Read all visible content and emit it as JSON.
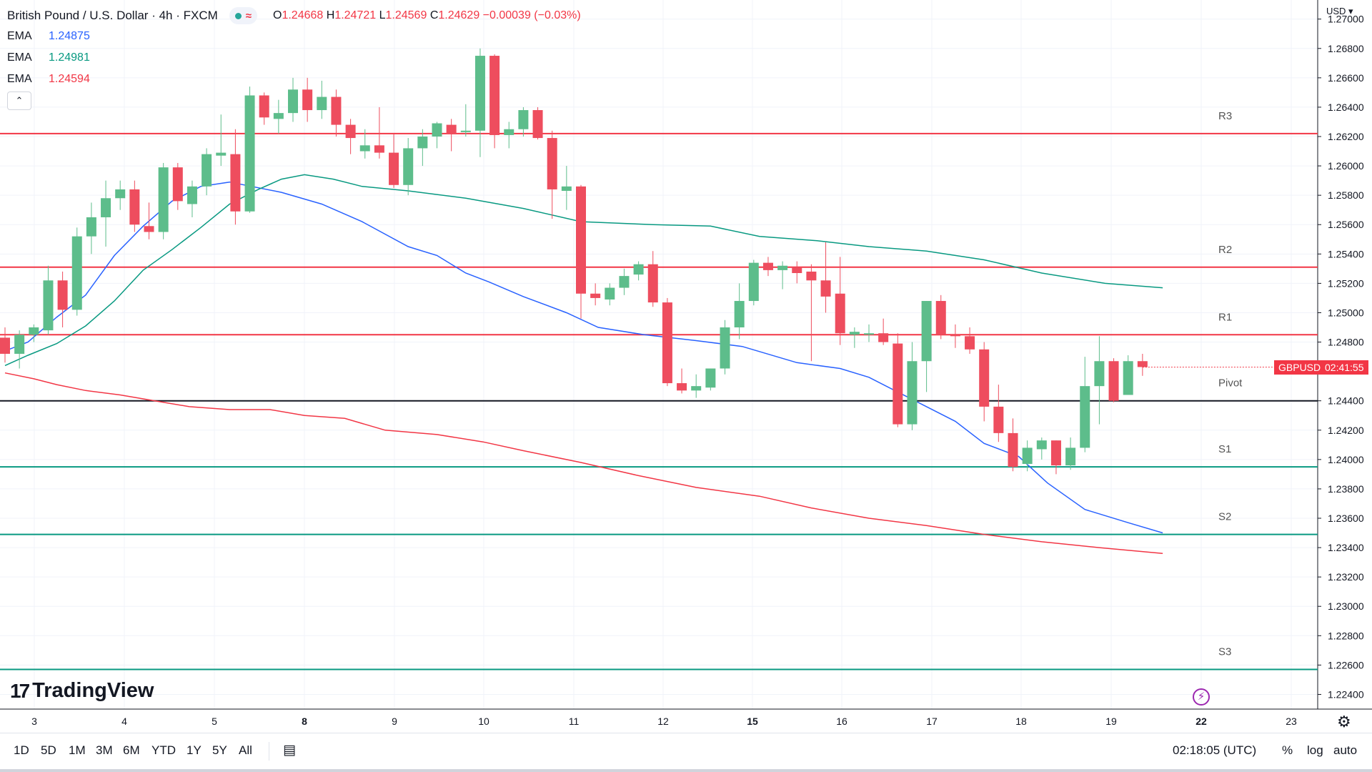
{
  "header": {
    "symbol_title": "British Pound / U.S. Dollar · 4h · FXCM",
    "open_label": "O",
    "open": "1.24668",
    "high_label": "H",
    "high": "1.24721",
    "low_label": "L",
    "low": "1.24569",
    "close_label": "C",
    "close": "1.24629",
    "change": "−0.00039 (−0.03%)",
    "wave_glyph": "≈"
  },
  "emas": [
    {
      "label": "EMA",
      "value": "1.24875",
      "color": "#2962ff"
    },
    {
      "label": "EMA",
      "value": "1.24981",
      "color": "#089981"
    },
    {
      "label": "EMA",
      "value": "1.24594",
      "color": "#f23645"
    }
  ],
  "collapse_glyph": "⌃",
  "logo_mark": "17",
  "logo_text": "TradingView",
  "currency": "USD ▾",
  "price_axis": {
    "ticks": [
      "1.27000",
      "1.26800",
      "1.26600",
      "1.26400",
      "1.26200",
      "1.26000",
      "1.25800",
      "1.25600",
      "1.25400",
      "1.25200",
      "1.25000",
      "1.24800",
      "1.24400",
      "1.24200",
      "1.24000",
      "1.23800",
      "1.23600",
      "1.23400",
      "1.23200",
      "1.23000",
      "1.22800",
      "1.22600",
      "1.22400"
    ]
  },
  "time_axis": {
    "labels": [
      {
        "text": "3",
        "bold": false
      },
      {
        "text": "4",
        "bold": false
      },
      {
        "text": "5",
        "bold": false
      },
      {
        "text": "8",
        "bold": true
      },
      {
        "text": "9",
        "bold": false
      },
      {
        "text": "10",
        "bold": false
      },
      {
        "text": "11",
        "bold": false
      },
      {
        "text": "12",
        "bold": false
      },
      {
        "text": "15",
        "bold": true
      },
      {
        "text": "16",
        "bold": false
      },
      {
        "text": "17",
        "bold": false
      },
      {
        "text": "18",
        "bold": false
      },
      {
        "text": "19",
        "bold": false
      },
      {
        "text": "22",
        "bold": true
      },
      {
        "text": "23",
        "bold": false
      }
    ]
  },
  "price_tag": {
    "symbol": "GBPUSD",
    "countdown": "02:41:55"
  },
  "bottom_bar": {
    "timeframes": [
      "1D",
      "5D",
      "1M",
      "3M",
      "6M",
      "YTD",
      "1Y",
      "5Y",
      "All"
    ],
    "clock": "02:18:05 (UTC)",
    "percent": "%",
    "log": "log",
    "auto": "auto"
  },
  "chart_data": {
    "type": "candlestick",
    "title": "British Pound / U.S. Dollar · 4h · FXCM",
    "ylim": [
      1.223,
      1.2713
    ],
    "candles": [
      {
        "o": 1.2483,
        "h": 1.249,
        "l": 1.2466,
        "c": 1.2472
      },
      {
        "o": 1.2472,
        "h": 1.2488,
        "l": 1.2462,
        "c": 1.2485
      },
      {
        "o": 1.2485,
        "h": 1.2492,
        "l": 1.248,
        "c": 1.249
      },
      {
        "o": 1.2488,
        "h": 1.2532,
        "l": 1.2485,
        "c": 1.2522
      },
      {
        "o": 1.2522,
        "h": 1.2528,
        "l": 1.249,
        "c": 1.2502
      },
      {
        "o": 1.2502,
        "h": 1.2558,
        "l": 1.2498,
        "c": 1.2552
      },
      {
        "o": 1.2552,
        "h": 1.2575,
        "l": 1.254,
        "c": 1.2565
      },
      {
        "o": 1.2565,
        "h": 1.259,
        "l": 1.2545,
        "c": 1.2578
      },
      {
        "o": 1.2578,
        "h": 1.259,
        "l": 1.257,
        "c": 1.2584
      },
      {
        "o": 1.2584,
        "h": 1.259,
        "l": 1.2555,
        "c": 1.256
      },
      {
        "o": 1.2559,
        "h": 1.2575,
        "l": 1.255,
        "c": 1.2555
      },
      {
        "o": 1.2555,
        "h": 1.2602,
        "l": 1.255,
        "c": 1.2599
      },
      {
        "o": 1.2599,
        "h": 1.2602,
        "l": 1.257,
        "c": 1.2576
      },
      {
        "o": 1.2574,
        "h": 1.259,
        "l": 1.2565,
        "c": 1.2586
      },
      {
        "o": 1.2586,
        "h": 1.2612,
        "l": 1.258,
        "c": 1.2608
      },
      {
        "o": 1.2607,
        "h": 1.2635,
        "l": 1.26,
        "c": 1.2609
      },
      {
        "o": 1.2608,
        "h": 1.2625,
        "l": 1.256,
        "c": 1.2569
      },
      {
        "o": 1.2569,
        "h": 1.2654,
        "l": 1.2568,
        "c": 1.2648
      },
      {
        "o": 1.2648,
        "h": 1.265,
        "l": 1.2628,
        "c": 1.2633
      },
      {
        "o": 1.2632,
        "h": 1.2645,
        "l": 1.2622,
        "c": 1.2636
      },
      {
        "o": 1.2636,
        "h": 1.266,
        "l": 1.263,
        "c": 1.2652
      },
      {
        "o": 1.2652,
        "h": 1.266,
        "l": 1.263,
        "c": 1.2638
      },
      {
        "o": 1.2638,
        "h": 1.2658,
        "l": 1.2632,
        "c": 1.2647
      },
      {
        "o": 1.2647,
        "h": 1.2652,
        "l": 1.262,
        "c": 1.2628
      },
      {
        "o": 1.2628,
        "h": 1.2632,
        "l": 1.2608,
        "c": 1.2619
      },
      {
        "o": 1.261,
        "h": 1.2625,
        "l": 1.2605,
        "c": 1.2614
      },
      {
        "o": 1.2614,
        "h": 1.264,
        "l": 1.2605,
        "c": 1.2609
      },
      {
        "o": 1.2609,
        "h": 1.2622,
        "l": 1.2585,
        "c": 1.2587
      },
      {
        "o": 1.2587,
        "h": 1.2619,
        "l": 1.258,
        "c": 1.2612
      },
      {
        "o": 1.2612,
        "h": 1.2625,
        "l": 1.26,
        "c": 1.262
      },
      {
        "o": 1.262,
        "h": 1.263,
        "l": 1.2612,
        "c": 1.2629
      },
      {
        "o": 1.2628,
        "h": 1.2632,
        "l": 1.261,
        "c": 1.2622
      },
      {
        "o": 1.2623,
        "h": 1.2642,
        "l": 1.262,
        "c": 1.2624
      },
      {
        "o": 1.2624,
        "h": 1.268,
        "l": 1.2606,
        "c": 1.2675
      },
      {
        "o": 1.2675,
        "h": 1.2676,
        "l": 1.2612,
        "c": 1.2621
      },
      {
        "o": 1.2621,
        "h": 1.263,
        "l": 1.2612,
        "c": 1.2625
      },
      {
        "o": 1.2625,
        "h": 1.264,
        "l": 1.262,
        "c": 1.2638
      },
      {
        "o": 1.2638,
        "h": 1.264,
        "l": 1.2618,
        "c": 1.2619
      },
      {
        "o": 1.2619,
        "h": 1.2624,
        "l": 1.2564,
        "c": 1.2584
      },
      {
        "o": 1.2583,
        "h": 1.26,
        "l": 1.257,
        "c": 1.2586
      },
      {
        "o": 1.2586,
        "h": 1.2587,
        "l": 1.2496,
        "c": 1.2513
      },
      {
        "o": 1.2513,
        "h": 1.252,
        "l": 1.2505,
        "c": 1.251
      },
      {
        "o": 1.2509,
        "h": 1.252,
        "l": 1.2505,
        "c": 1.2517
      },
      {
        "o": 1.2517,
        "h": 1.253,
        "l": 1.2512,
        "c": 1.2525
      },
      {
        "o": 1.2526,
        "h": 1.2535,
        "l": 1.2522,
        "c": 1.2533
      },
      {
        "o": 1.2533,
        "h": 1.2542,
        "l": 1.2504,
        "c": 1.2507
      },
      {
        "o": 1.2507,
        "h": 1.251,
        "l": 1.245,
        "c": 1.2452
      },
      {
        "o": 1.2452,
        "h": 1.2462,
        "l": 1.2445,
        "c": 1.2447
      },
      {
        "o": 1.2447,
        "h": 1.2458,
        "l": 1.2442,
        "c": 1.245
      },
      {
        "o": 1.2449,
        "h": 1.2462,
        "l": 1.2447,
        "c": 1.2462
      },
      {
        "o": 1.2462,
        "h": 1.2495,
        "l": 1.2458,
        "c": 1.249
      },
      {
        "o": 1.249,
        "h": 1.252,
        "l": 1.2482,
        "c": 1.2508
      },
      {
        "o": 1.2508,
        "h": 1.2536,
        "l": 1.2505,
        "c": 1.2534
      },
      {
        "o": 1.2534,
        "h": 1.2538,
        "l": 1.2525,
        "c": 1.2529
      },
      {
        "o": 1.2529,
        "h": 1.2535,
        "l": 1.2516,
        "c": 1.2532
      },
      {
        "o": 1.2531,
        "h": 1.2535,
        "l": 1.252,
        "c": 1.2527
      },
      {
        "o": 1.2528,
        "h": 1.2533,
        "l": 1.2467,
        "c": 1.2522
      },
      {
        "o": 1.2522,
        "h": 1.2548,
        "l": 1.25,
        "c": 1.2511
      },
      {
        "o": 1.2513,
        "h": 1.2538,
        "l": 1.2478,
        "c": 1.2486
      },
      {
        "o": 1.2485,
        "h": 1.249,
        "l": 1.2476,
        "c": 1.2487
      },
      {
        "o": 1.2486,
        "h": 1.2492,
        "l": 1.248,
        "c": 1.2486
      },
      {
        "o": 1.2486,
        "h": 1.2496,
        "l": 1.2478,
        "c": 1.248
      },
      {
        "o": 1.2479,
        "h": 1.2486,
        "l": 1.2422,
        "c": 1.2424
      },
      {
        "o": 1.2424,
        "h": 1.248,
        "l": 1.242,
        "c": 1.2467
      },
      {
        "o": 1.2467,
        "h": 1.2508,
        "l": 1.2446,
        "c": 1.2508
      },
      {
        "o": 1.2508,
        "h": 1.2512,
        "l": 1.2482,
        "c": 1.2485
      },
      {
        "o": 1.2485,
        "h": 1.2492,
        "l": 1.2476,
        "c": 1.2484
      },
      {
        "o": 1.2484,
        "h": 1.249,
        "l": 1.2472,
        "c": 1.2475
      },
      {
        "o": 1.2475,
        "h": 1.248,
        "l": 1.2426,
        "c": 1.2436
      },
      {
        "o": 1.2436,
        "h": 1.2451,
        "l": 1.2412,
        "c": 1.2418
      },
      {
        "o": 1.2418,
        "h": 1.2428,
        "l": 1.2392,
        "c": 1.2395
      },
      {
        "o": 1.2397,
        "h": 1.2413,
        "l": 1.2392,
        "c": 1.2408
      },
      {
        "o": 1.2407,
        "h": 1.2415,
        "l": 1.24,
        "c": 1.2413
      },
      {
        "o": 1.2413,
        "h": 1.2413,
        "l": 1.239,
        "c": 1.2396
      },
      {
        "o": 1.2396,
        "h": 1.2415,
        "l": 1.2393,
        "c": 1.2408
      },
      {
        "o": 1.2408,
        "h": 1.247,
        "l": 1.2405,
        "c": 1.245
      },
      {
        "o": 1.245,
        "h": 1.2484,
        "l": 1.2424,
        "c": 1.2467
      },
      {
        "o": 1.2467,
        "h": 1.2469,
        "l": 1.2439,
        "c": 1.244
      },
      {
        "o": 1.2444,
        "h": 1.2471,
        "l": 1.2444,
        "c": 1.2467
      },
      {
        "o": 1.2467,
        "h": 1.2472,
        "l": 1.2457,
        "c": 1.2463
      }
    ],
    "ema_series": [
      {
        "name": "EMA 1.24875",
        "color": "#2962ff",
        "values": [
          [
            0,
            1.2474
          ],
          [
            8,
            1.248
          ],
          [
            18,
            1.2497
          ],
          [
            28,
            1.2512
          ],
          [
            38,
            1.2539
          ],
          [
            48,
            1.2559
          ],
          [
            58,
            1.2576
          ],
          [
            68,
            1.2586
          ],
          [
            78,
            1.2589
          ],
          [
            96,
            1.2582
          ],
          [
            110,
            1.2574
          ],
          [
            124,
            1.2562
          ],
          [
            140,
            1.2545
          ],
          [
            150,
            1.2539
          ],
          [
            160,
            1.2527
          ],
          [
            168,
            1.2521
          ],
          [
            180,
            1.2511
          ],
          [
            195,
            1.25
          ],
          [
            206,
            1.249
          ],
          [
            222,
            1.2485
          ],
          [
            240,
            1.2481
          ],
          [
            256,
            1.2477
          ],
          [
            275,
            1.2466
          ],
          [
            290,
            1.2462
          ],
          [
            300,
            1.2456
          ],
          [
            310,
            1.2446
          ],
          [
            320,
            1.2436
          ],
          [
            330,
            1.2426
          ],
          [
            340,
            1.2411
          ],
          [
            352,
            1.2402
          ],
          [
            362,
            1.2384
          ],
          [
            375,
            1.2366
          ],
          [
            390,
            1.2357
          ],
          [
            402,
            1.235
          ]
        ]
      },
      {
        "name": "EMA 1.24981",
        "color": "#089981",
        "values": [
          [
            0,
            1.2464
          ],
          [
            8,
            1.2471
          ],
          [
            18,
            1.2479
          ],
          [
            28,
            1.2491
          ],
          [
            38,
            1.2508
          ],
          [
            48,
            1.2529
          ],
          [
            58,
            1.2543
          ],
          [
            68,
            1.2558
          ],
          [
            78,
            1.2574
          ],
          [
            88,
            1.2584
          ],
          [
            96,
            1.2591
          ],
          [
            104,
            1.2594
          ],
          [
            114,
            1.2591
          ],
          [
            124,
            1.2586
          ],
          [
            140,
            1.2583
          ],
          [
            160,
            1.2578
          ],
          [
            180,
            1.2571
          ],
          [
            200,
            1.2562
          ],
          [
            225,
            1.256
          ],
          [
            245,
            1.2559
          ],
          [
            262,
            1.2552
          ],
          [
            282,
            1.2549
          ],
          [
            300,
            1.2545
          ],
          [
            320,
            1.2542
          ],
          [
            340,
            1.2536
          ],
          [
            360,
            1.2527
          ],
          [
            382,
            1.252
          ],
          [
            402,
            1.2517
          ]
        ]
      },
      {
        "name": "EMA 1.24594",
        "color": "#f23645",
        "values": [
          [
            0,
            1.2459
          ],
          [
            10,
            1.2455
          ],
          [
            18,
            1.2451
          ],
          [
            28,
            1.2447
          ],
          [
            40,
            1.2444
          ],
          [
            52,
            1.244
          ],
          [
            64,
            1.2436
          ],
          [
            78,
            1.2434
          ],
          [
            92,
            1.2434
          ],
          [
            104,
            1.243
          ],
          [
            118,
            1.2428
          ],
          [
            132,
            1.242
          ],
          [
            150,
            1.2417
          ],
          [
            166,
            1.2412
          ],
          [
            180,
            1.2406
          ],
          [
            200,
            1.2398
          ],
          [
            220,
            1.2389
          ],
          [
            240,
            1.2381
          ],
          [
            262,
            1.2375
          ],
          [
            280,
            1.2367
          ],
          [
            300,
            1.236
          ],
          [
            320,
            1.2355
          ],
          [
            340,
            1.2349
          ],
          [
            360,
            1.2344
          ],
          [
            380,
            1.234
          ],
          [
            402,
            1.2336
          ]
        ]
      }
    ],
    "levels": [
      {
        "label": "R3",
        "value": 1.2622,
        "color": "#f23645"
      },
      {
        "label": "R2",
        "value": 1.2531,
        "color": "#f23645"
      },
      {
        "label": "R1",
        "value": 1.2485,
        "color": "#f23645"
      },
      {
        "label": "Pivot",
        "value": 1.244,
        "color": "#131722"
      },
      {
        "label": "S1",
        "value": 1.2395,
        "color": "#089981"
      },
      {
        "label": "S2",
        "value": 1.2349,
        "color": "#089981"
      },
      {
        "label": "S3",
        "value": 1.2257,
        "color": "#089981"
      }
    ],
    "last_price": 1.24629,
    "xlabel": "",
    "ylabel": "USD"
  }
}
